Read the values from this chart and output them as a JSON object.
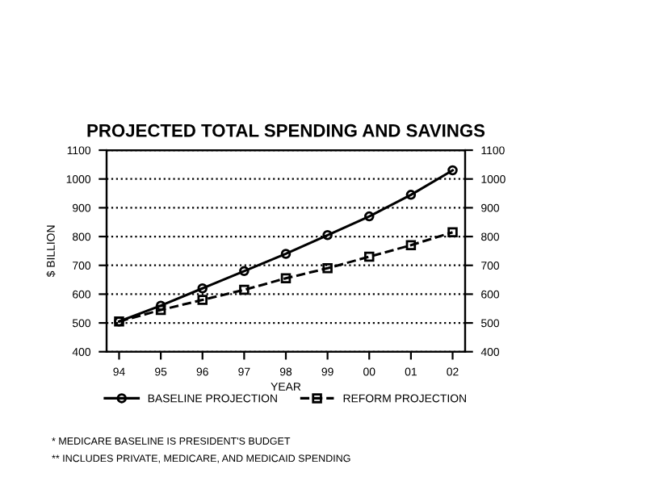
{
  "chart_data": {
    "type": "line",
    "title": "PROJECTED TOTAL SPENDING AND SAVINGS",
    "xlabel": "YEAR",
    "ylabel": "$ BILLION",
    "categories": [
      "94",
      "95",
      "96",
      "97",
      "98",
      "99",
      "00",
      "01",
      "02"
    ],
    "series": [
      {
        "name": "BASELINE PROJECTION",
        "color": "#000000",
        "marker": "circle",
        "line_style": "solid",
        "values": [
          505,
          560,
          620,
          680,
          740,
          805,
          870,
          945,
          1030
        ]
      },
      {
        "name": "REFORM PROJECTION",
        "color": "#000000",
        "marker": "square",
        "line_style": "dashed",
        "values": [
          505,
          545,
          580,
          615,
          655,
          690,
          730,
          770,
          815
        ]
      }
    ],
    "ylim": [
      400,
      1100
    ],
    "yticks": [
      400,
      500,
      600,
      700,
      800,
      900,
      1000,
      1100
    ],
    "y2lim": [
      400,
      1100
    ],
    "y2ticks": [
      400,
      500,
      600,
      700,
      800,
      900,
      1000,
      1100
    ],
    "grid": "y",
    "legend": "bottom",
    "annotations": [
      "* MEDICARE BASELINE IS PRESIDENT'S BUDGET",
      "** INCLUDES PRIVATE, MEDICARE, AND MEDICAID SPENDING"
    ]
  }
}
